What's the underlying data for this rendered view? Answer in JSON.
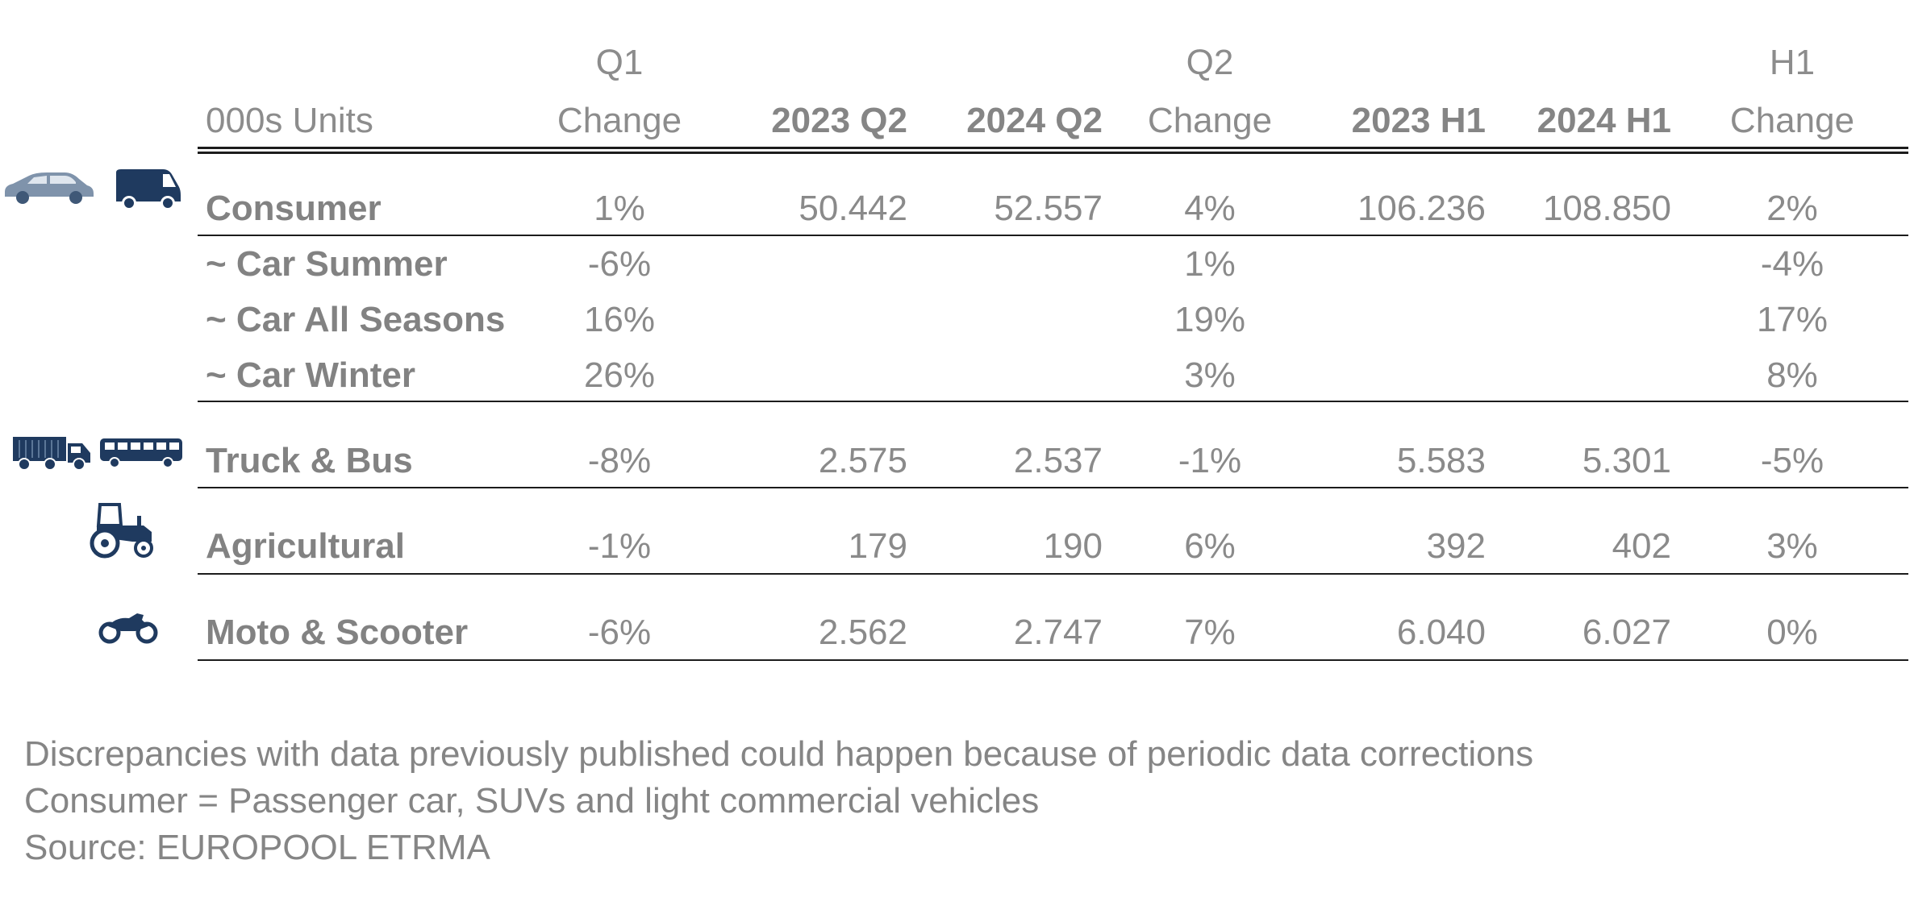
{
  "header": {
    "unit_label": "000s Units",
    "q1_top": "Q1",
    "q1_change": "Change",
    "col_2023_q2": "2023 Q2",
    "col_2024_q2": "2024 Q2",
    "q2_top": "Q2",
    "q2_change": "Change",
    "col_2023_h1": "2023 H1",
    "col_2024_h1": "2024 H1",
    "h1_top": "H1",
    "h1_change": "Change"
  },
  "rows": [
    {
      "label": "Consumer",
      "q1_change": "1%",
      "q2_2023": "50.442",
      "q2_2024": "52.557",
      "q2_change": "4%",
      "h1_2023": "106.236",
      "h1_2024": "108.850",
      "h1_change": "2%",
      "icons": [
        "car-icon",
        "van-icon"
      ]
    },
    {
      "label": "~ Car Summer",
      "q1_change": "-6%",
      "q2_change": "1%",
      "h1_change": "-4%"
    },
    {
      "label": "~ Car All Seasons",
      "q1_change": "16%",
      "q2_change": "19%",
      "h1_change": "17%"
    },
    {
      "label": "~ Car Winter",
      "q1_change": "26%",
      "q2_change": "3%",
      "h1_change": "8%"
    },
    {
      "label": "Truck & Bus",
      "q1_change": "-8%",
      "q2_2023": "2.575",
      "q2_2024": "2.537",
      "q2_change": "-1%",
      "h1_2023": "5.583",
      "h1_2024": "5.301",
      "h1_change": "-5%",
      "icons": [
        "truck-icon",
        "bus-icon"
      ]
    },
    {
      "label": "Agricultural",
      "q1_change": "-1%",
      "q2_2023": "179",
      "q2_2024": "190",
      "q2_change": "6%",
      "h1_2023": "392",
      "h1_2024": "402",
      "h1_change": "3%",
      "icons": [
        "tractor-icon"
      ]
    },
    {
      "label": "Moto & Scooter",
      "q1_change": "-6%",
      "q2_2023": "2.562",
      "q2_2024": "2.747",
      "q2_change": "7%",
      "h1_2023": "6.040",
      "h1_2024": "6.027",
      "h1_change": "0%",
      "icons": [
        "motorcycle-icon"
      ]
    }
  ],
  "notes": [
    "Discrepancies with data previously published could happen because of periodic data corrections",
    "Consumer = Passenger car, SUVs and light commercial vehicles",
    "Source: EUROPOOL ETRMA"
  ],
  "colors": {
    "icon": "#1f3a5f",
    "text": "#8a8a8a",
    "rule": "#1c1c1c"
  }
}
